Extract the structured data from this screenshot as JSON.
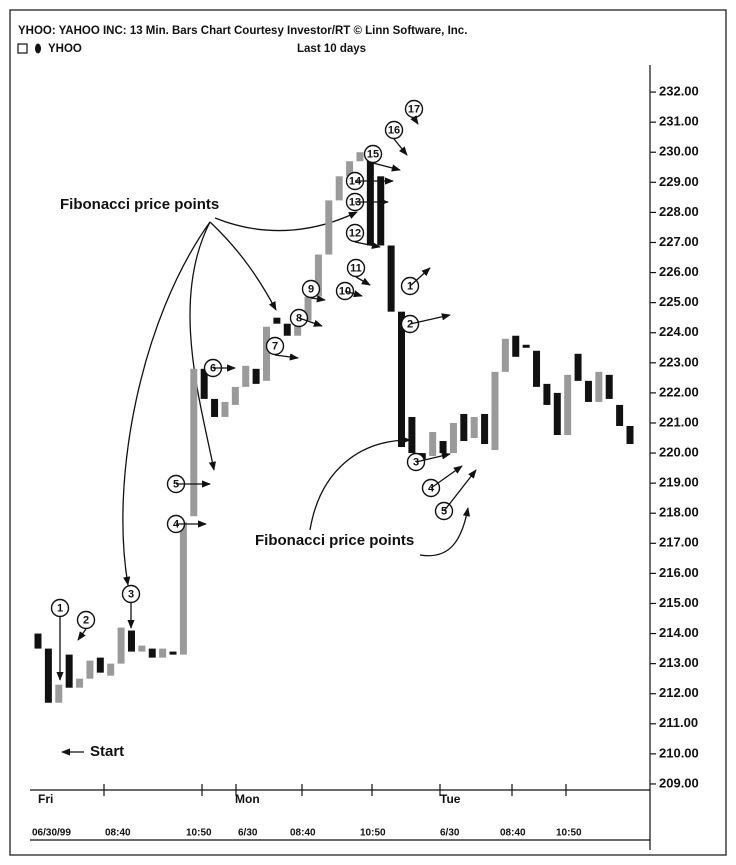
{
  "chart_data": {
    "type": "candlestick",
    "title": "YHOO: YAHOO INC: 13 Min. Bars Chart Courtesy Investor/RT © Linn Software, Inc.",
    "symbol": "YHOO",
    "subtitle": "Last 10 days",
    "days": [
      "Fri",
      "Mon",
      "Tue"
    ],
    "time_labels": [
      "06/30/99",
      "08:40",
      "10:50",
      "6/30",
      "08:40",
      "10:50",
      "6/30",
      "08:40",
      "10:50"
    ],
    "annotations": [
      "Fibonacci price points",
      "Fibonacci price points",
      "Start"
    ],
    "points_up": [
      "1",
      "2",
      "3",
      "4",
      "5",
      "6",
      "7",
      "8",
      "9",
      "10",
      "11",
      "12",
      "13",
      "14",
      "15",
      "16",
      "17"
    ],
    "points_down": [
      "1",
      "2",
      "3",
      "4",
      "5"
    ],
    "open": [
      214.0,
      213.5,
      211.7,
      213.3,
      212.2,
      212.5,
      213.2,
      212.6,
      213.0,
      214.1,
      213.4,
      213.5,
      213.2,
      213.4,
      213.3,
      217.9,
      222.8,
      221.8,
      221.2,
      221.6,
      222.2,
      222.8,
      222.4,
      224.5,
      224.3,
      223.9,
      224.4,
      225.2,
      226.6,
      228.4,
      229.2,
      229.7,
      230.0,
      229.2,
      226.9,
      224.7,
      221.2,
      220.0,
      219.9,
      220.4,
      220.0,
      221.3,
      220.5,
      221.3,
      220.1,
      222.7,
      223.9,
      223.6,
      223.4,
      222.3,
      222.0,
      220.6,
      223.3,
      222.4,
      221.7,
      222.6,
      221.6,
      220.9
    ],
    "close": [
      213.5,
      211.7,
      212.3,
      212.2,
      212.5,
      213.1,
      212.7,
      213.0,
      214.2,
      213.4,
      213.6,
      213.2,
      213.5,
      213.3,
      217.7,
      222.8,
      221.8,
      221.2,
      221.7,
      222.2,
      222.9,
      222.3,
      224.2,
      224.3,
      223.9,
      224.6,
      225.2,
      226.6,
      228.4,
      229.2,
      229.7,
      230.0,
      226.9,
      226.9,
      224.7,
      220.2,
      220.0,
      219.8,
      220.7,
      220.0,
      221.0,
      220.4,
      221.2,
      220.3,
      222.7,
      223.8,
      223.2,
      223.5,
      222.2,
      221.6,
      220.6,
      222.6,
      222.4,
      221.7,
      222.7,
      221.8,
      220.9,
      220.3
    ],
    "ylim": [
      208.6,
      232.9
    ],
    "yticks": [
      {
        "value": 209,
        "label": "209.00"
      },
      {
        "value": 210,
        "label": "210.00"
      },
      {
        "value": 211,
        "label": "211.00"
      },
      {
        "value": 212,
        "label": "212.00"
      },
      {
        "value": 213,
        "label": "213.00"
      },
      {
        "value": 214,
        "label": "214.00"
      },
      {
        "value": 215,
        "label": "215.00"
      },
      {
        "value": 216,
        "label": "216.00"
      },
      {
        "value": 217,
        "label": "217.00"
      },
      {
        "value": 218,
        "label": "218.00"
      },
      {
        "value": 219,
        "label": "219.00"
      },
      {
        "value": 220,
        "label": "220.00"
      },
      {
        "value": 221,
        "label": "221.00"
      },
      {
        "value": 222,
        "label": "222.00"
      },
      {
        "value": 223,
        "label": "223.00"
      },
      {
        "value": 224,
        "label": "224.00"
      },
      {
        "value": 225,
        "label": "225.00"
      },
      {
        "value": 226,
        "label": "226.00"
      },
      {
        "value": 227,
        "label": "227.00"
      },
      {
        "value": 228,
        "label": "228.00"
      },
      {
        "value": 229,
        "label": "229.00"
      },
      {
        "value": 230,
        "label": "230.00"
      },
      {
        "value": 231,
        "label": "231.00"
      },
      {
        "value": 232,
        "label": "232.00"
      }
    ],
    "up_color": "#9a9a9a",
    "down_color": "#111111"
  }
}
